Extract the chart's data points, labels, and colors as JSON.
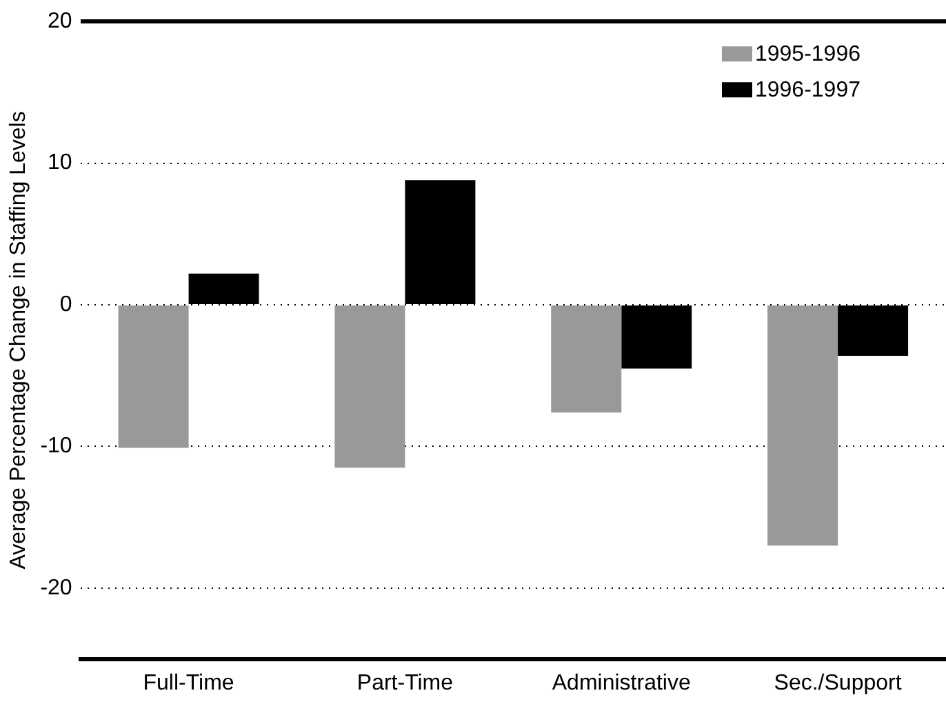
{
  "chart_data": {
    "type": "bar",
    "ylabel": "Average Percentage Change in Staffing Levels",
    "categories": [
      "Full-Time",
      "Part-Time",
      "Administrative",
      "Sec./Support"
    ],
    "series": [
      {
        "name": "1995-1996",
        "color": "#999999",
        "values": [
          -10.1,
          -11.5,
          -7.6,
          -17.0
        ]
      },
      {
        "name": "1996-1997",
        "color": "#000000",
        "values": [
          2.2,
          8.8,
          -4.5,
          -3.6
        ]
      }
    ],
    "ylim": [
      -25,
      20
    ],
    "yticks": [
      -20,
      -10,
      0,
      10,
      20
    ],
    "grid": "y",
    "legend": "top right"
  }
}
